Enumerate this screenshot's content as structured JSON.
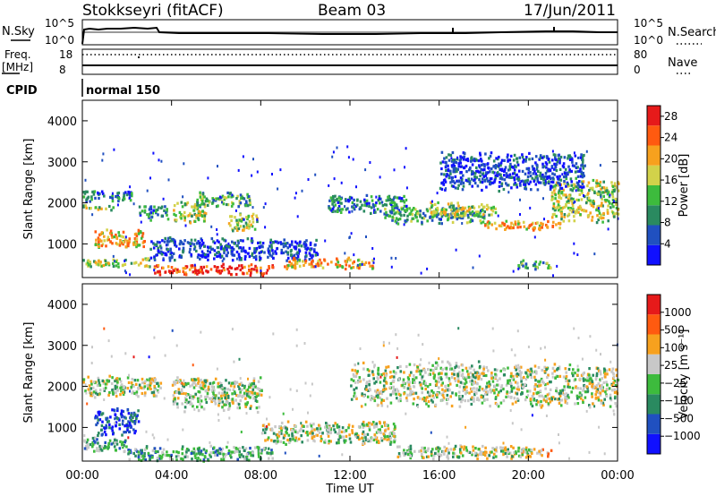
{
  "header": {
    "station": "Stokkseyri (fitACF)",
    "beam": "Beam 03",
    "date": "17/Jun/2011"
  },
  "strips": {
    "nsky_label": "N.Sky",
    "nsky_ticks": [
      "10^5",
      "10^0"
    ],
    "nsearch_label": "N.Search",
    "freq_label_1": "Freq.",
    "freq_label_2": "[MHz]",
    "freq_ticks": [
      "18",
      "8"
    ],
    "nave_label": "Nave",
    "nave_ticks": [
      "80",
      "0"
    ],
    "cpid_label": "CPID",
    "cpid_value": "normal 150"
  },
  "x_axis": {
    "title": "Time UT",
    "ticks": [
      "00:00",
      "04:00",
      "08:00",
      "12:00",
      "16:00",
      "20:00",
      "00:00"
    ]
  },
  "colors": {
    "power": [
      "#1010ff",
      "#2050c0",
      "#2a8a60",
      "#3dbb3d",
      "#d2d24a",
      "#f7a11e",
      "#ff5a10",
      "#e61a1a"
    ],
    "velocity": [
      "#1010ff",
      "#2050c0",
      "#2a8a60",
      "#3dbb3d",
      "#c8c8c8",
      "#f7a11e",
      "#ff5a10",
      "#e61a1a"
    ]
  },
  "chart_data": [
    {
      "type": "heatmap",
      "quantity": "power",
      "ylabel": "Slant Range [km]",
      "yticks": [
        1000,
        2000,
        3000,
        4000
      ],
      "ylim": [
        180,
        4500
      ],
      "xlim": [
        0,
        24
      ],
      "colorbar_label": "Power [dB]",
      "colorbar_ticks": [
        "4",
        "8",
        "12",
        "16",
        "20",
        "24",
        "28"
      ],
      "colorbar_range": [
        0,
        30
      ],
      "echo_bands": [
        {
          "t0": 0.0,
          "t1": 1.4,
          "r0": 1850,
          "r1": 2000,
          "rmid": 1925,
          "level": 4
        },
        {
          "t0": 0.0,
          "t1": 2.2,
          "r0": 2050,
          "r1": 2350,
          "level": 2
        },
        {
          "t0": 0.5,
          "t1": 2.8,
          "r0": 900,
          "r1": 1400,
          "level": 5
        },
        {
          "t0": 0.0,
          "t1": 3.0,
          "r0": 450,
          "r1": 700,
          "level": 4
        },
        {
          "t0": 2.5,
          "t1": 3.8,
          "r0": 1600,
          "r1": 2000,
          "level": 2
        },
        {
          "t0": 3.2,
          "t1": 8.5,
          "r0": 250,
          "r1": 550,
          "level": 7
        },
        {
          "t0": 4.0,
          "t1": 5.5,
          "r0": 1500,
          "r1": 2100,
          "level": 4
        },
        {
          "t0": 5.0,
          "t1": 7.5,
          "r0": 1900,
          "r1": 2300,
          "level": 3
        },
        {
          "t0": 6.5,
          "t1": 7.8,
          "r0": 1300,
          "r1": 1800,
          "level": 4
        },
        {
          "t0": 3.0,
          "t1": 10.5,
          "r0": 600,
          "r1": 1200,
          "level": 1
        },
        {
          "t0": 9.0,
          "t1": 13.0,
          "r0": 400,
          "r1": 700,
          "level": 5
        },
        {
          "t0": 11.0,
          "t1": 14.5,
          "r0": 1750,
          "r1": 2250,
          "level": 2
        },
        {
          "t0": 13.5,
          "t1": 18.0,
          "r0": 1500,
          "r1": 1950,
          "level": 3
        },
        {
          "t0": 15.5,
          "t1": 18.5,
          "r0": 1700,
          "r1": 2050,
          "level": 4
        },
        {
          "t0": 18.0,
          "t1": 21.5,
          "r0": 1350,
          "r1": 1600,
          "level": 5
        },
        {
          "t0": 21.0,
          "t1": 24.0,
          "r0": 1550,
          "r1": 2650,
          "level": 4
        },
        {
          "t0": 16.0,
          "t1": 22.5,
          "r0": 2300,
          "r1": 3300,
          "level": 1
        },
        {
          "t0": 19.5,
          "t1": 21.0,
          "r0": 400,
          "r1": 650,
          "level": 3
        }
      ]
    },
    {
      "type": "heatmap",
      "quantity": "velocity",
      "ylabel": "Slant Range [km]",
      "yticks": [
        1000,
        2000,
        3000,
        4000
      ],
      "ylim": [
        180,
        4500
      ],
      "xlim": [
        0,
        24
      ],
      "colorbar_label": "Velocity [m s⁻¹]",
      "colorbar_ticks": [
        "1000",
        "500",
        "100",
        "25",
        "−25",
        "−100",
        "−500",
        "−1000"
      ],
      "echo_bands": [
        {
          "t0": 0.0,
          "t1": 3.5,
          "r0": 1750,
          "r1": 2300,
          "level": 4
        },
        {
          "t0": 0.5,
          "t1": 2.5,
          "r0": 800,
          "r1": 1500,
          "level": 1
        },
        {
          "t0": 0.0,
          "t1": 2.0,
          "r0": 400,
          "r1": 800,
          "level": 3
        },
        {
          "t0": 2.0,
          "t1": 8.5,
          "r0": 200,
          "r1": 600,
          "level": 3
        },
        {
          "t0": 4.0,
          "t1": 8.0,
          "r0": 1400,
          "r1": 2300,
          "level": 4
        },
        {
          "t0": 8.0,
          "t1": 14.0,
          "r0": 600,
          "r1": 1200,
          "level": 4
        },
        {
          "t0": 12.0,
          "t1": 24.0,
          "r0": 1500,
          "r1": 2650,
          "level": 4
        },
        {
          "t0": 14.0,
          "t1": 20.0,
          "r0": 250,
          "r1": 600,
          "level": 4
        },
        {
          "t0": 19.5,
          "t1": 21.0,
          "r0": 300,
          "r1": 550,
          "level": 5
        }
      ]
    }
  ]
}
